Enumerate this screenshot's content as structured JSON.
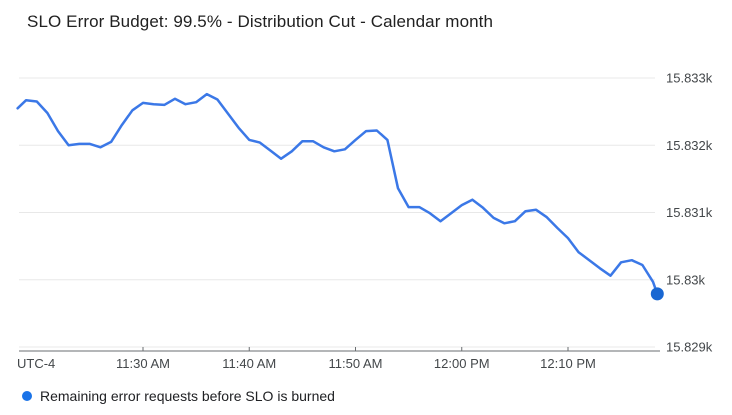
{
  "page": {
    "background": "#ffffff"
  },
  "colors": {
    "title_text": "#212121",
    "gridline": "#e8e8e8",
    "axis_line": "#6a6e71",
    "tick_label": "#43474a",
    "legend_text": "#202124"
  },
  "legend": {
    "series_label": "Remaining error requests before SLO is burned",
    "dot_color": "#1a73e8"
  },
  "chart_data": {
    "type": "line",
    "title": "SLO Error Budget: 99.5% - Distribution Cut - Calendar month",
    "xlabel": "",
    "ylabel": "",
    "grid": true,
    "legend_position": "bottom-left",
    "x_axis": {
      "timezone_label": "UTC-4",
      "unit": "minutes relative to 11:30 AM",
      "range_t_min": [
        -12.2,
        48.9
      ],
      "ticks": [
        {
          "label": "11:30 AM",
          "t_min": 0
        },
        {
          "label": "11:40 AM",
          "t_min": 10
        },
        {
          "label": "11:50 AM",
          "t_min": 20
        },
        {
          "label": "12:00 PM",
          "t_min": 30
        },
        {
          "label": "12:10 PM",
          "t_min": 40
        }
      ]
    },
    "y_axis": {
      "range": [
        15828.93,
        15833.12
      ],
      "ticks": [
        {
          "label": "15.833k",
          "value": 15833
        },
        {
          "label": "15.832k",
          "value": 15832
        },
        {
          "label": "15.831k",
          "value": 15831
        },
        {
          "label": "15.83k",
          "value": 15830
        },
        {
          "label": "15.829k",
          "value": 15829
        }
      ]
    },
    "series": [
      {
        "name": "Remaining error requests before SLO is burned",
        "color": "#3b78e7",
        "endpoint_dot_color": "#1967d2",
        "endpoint_dot_radius": 6.5,
        "points": [
          [
            -11.8,
            15832.55
          ],
          [
            -11,
            15832.67
          ],
          [
            -10,
            15832.65
          ],
          [
            -9,
            15832.48
          ],
          [
            -8,
            15832.21
          ],
          [
            -7,
            15832.0
          ],
          [
            -6,
            15832.02
          ],
          [
            -5,
            15832.02
          ],
          [
            -4,
            15831.97
          ],
          [
            -3,
            15832.05
          ],
          [
            -2,
            15832.3
          ],
          [
            -1,
            15832.52
          ],
          [
            0,
            15832.63
          ],
          [
            1,
            15832.61
          ],
          [
            2,
            15832.6
          ],
          [
            3,
            15832.69
          ],
          [
            4,
            15832.61
          ],
          [
            5,
            15832.64
          ],
          [
            6,
            15832.76
          ],
          [
            7,
            15832.68
          ],
          [
            8,
            15832.47
          ],
          [
            9,
            15832.26
          ],
          [
            10,
            15832.08
          ],
          [
            11,
            15832.04
          ],
          [
            12,
            15831.92
          ],
          [
            13,
            15831.8
          ],
          [
            14,
            15831.91
          ],
          [
            15,
            15832.06
          ],
          [
            16,
            15832.06
          ],
          [
            17,
            15831.97
          ],
          [
            18,
            15831.91
          ],
          [
            19,
            15831.94
          ],
          [
            20,
            15832.08
          ],
          [
            21,
            15832.21
          ],
          [
            22,
            15832.22
          ],
          [
            23,
            15832.08
          ],
          [
            24,
            15831.36
          ],
          [
            25,
            15831.08
          ],
          [
            26,
            15831.08
          ],
          [
            27,
            15830.99
          ],
          [
            28,
            15830.87
          ],
          [
            29,
            15830.99
          ],
          [
            30,
            15831.11
          ],
          [
            31,
            15831.19
          ],
          [
            32,
            15831.07
          ],
          [
            33,
            15830.92
          ],
          [
            34,
            15830.84
          ],
          [
            35,
            15830.87
          ],
          [
            36,
            15831.02
          ],
          [
            37,
            15831.04
          ],
          [
            38,
            15830.93
          ],
          [
            39,
            15830.77
          ],
          [
            40,
            15830.62
          ],
          [
            41,
            15830.41
          ],
          [
            42,
            15830.29
          ],
          [
            43,
            15830.17
          ],
          [
            44,
            15830.06
          ],
          [
            45,
            15830.26
          ],
          [
            46,
            15830.29
          ],
          [
            47,
            15830.22
          ],
          [
            48,
            15829.97
          ],
          [
            48.4,
            15829.79
          ]
        ]
      }
    ]
  }
}
